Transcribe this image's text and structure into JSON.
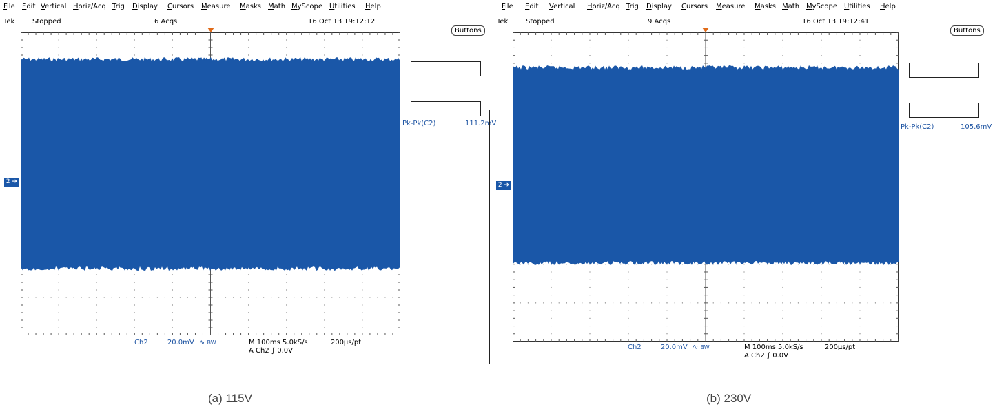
{
  "menu": [
    "File",
    "Edit",
    "Vertical",
    "Horiz/Acq",
    "Trig",
    "Display",
    "Cursors",
    "Measure",
    "Masks",
    "Math",
    "MyScope",
    "Utilities",
    "Help"
  ],
  "buttons_label": "Buttons",
  "screens": [
    {
      "brand": "Tek",
      "state": "Stopped",
      "acqs": "6 Acqs",
      "datetime": "16 Oct 13 19:12:12",
      "channel_marker": "2",
      "measurement": {
        "label": "Pk-Pk(C2)",
        "value": "111.2mV"
      },
      "ch_label": "Ch2",
      "vdiv": "20.0mV",
      "bw": "BW",
      "timebase": "M 100ms 5.0kS/s",
      "pt": "200µs/pt",
      "trigger": "A  Ch2  ∫  0.0V",
      "caption": "(a) 115V",
      "signal_color": "#1a57a8"
    },
    {
      "brand": "Tek",
      "state": "Stopped",
      "acqs": "9 Acqs",
      "datetime": "16 Oct 13 19:12:41",
      "channel_marker": "2",
      "measurement": {
        "label": "Pk-Pk(C2)",
        "value": "105.6mV"
      },
      "ch_label": "Ch2",
      "vdiv": "20.0mV",
      "bw": "BW",
      "timebase": "M 100ms 5.0kS/s",
      "pt": "200µs/pt",
      "trigger": "A  Ch2  ∫  0.0V",
      "caption": "(b) 230V",
      "signal_color": "#1a57a8"
    }
  ]
}
